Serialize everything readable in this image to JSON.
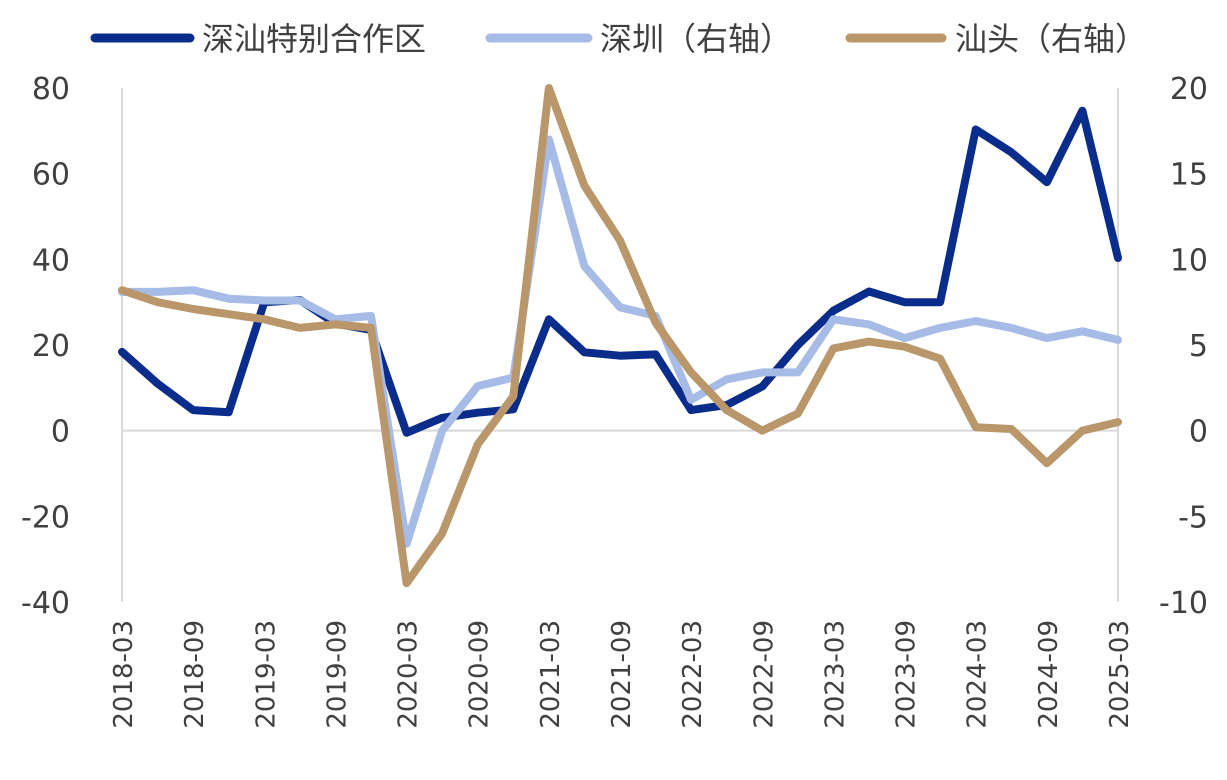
{
  "chart_data": {
    "type": "line",
    "title": "",
    "xlabel": "",
    "ylabel": "",
    "categories": [
      "2018-03",
      "2018-06",
      "2018-09",
      "2018-12",
      "2019-03",
      "2019-06",
      "2019-09",
      "2019-12",
      "2020-03",
      "2020-06",
      "2020-09",
      "2020-12",
      "2021-03",
      "2021-06",
      "2021-09",
      "2021-12",
      "2022-03",
      "2022-06",
      "2022-09",
      "2022-12",
      "2023-03",
      "2023-06",
      "2023-09",
      "2023-12",
      "2024-03",
      "2024-06",
      "2024-09",
      "2024-12",
      "2025-03"
    ],
    "x_tick_labels": [
      "2018-03",
      "2018-09",
      "2019-03",
      "2019-09",
      "2020-03",
      "2020-09",
      "2021-03",
      "2021-09",
      "2022-03",
      "2022-09",
      "2023-03",
      "2023-09",
      "2024-03",
      "2024-09",
      "2025-03"
    ],
    "y_left": {
      "range": [
        -40,
        80
      ],
      "ticks": [
        "80",
        "60",
        "40",
        "20",
        "0",
        "-20",
        "-40"
      ]
    },
    "y_right": {
      "range": [
        -10,
        20
      ],
      "ticks": [
        "20",
        "15",
        "10",
        "5",
        "0",
        "-5",
        "-10"
      ]
    },
    "grid": false,
    "legend_position": "top",
    "series": [
      {
        "name": "深汕特别合作区",
        "axis": "left",
        "color": "#0a2d8c",
        "values": [
          18.4,
          11,
          4.8,
          4.3,
          30,
          30.5,
          25,
          23.5,
          -0.5,
          3,
          4.2,
          5,
          26,
          18.3,
          17.5,
          17.8,
          4.8,
          6,
          10.3,
          20,
          28,
          32.5,
          30,
          30,
          70.3,
          65,
          58,
          74.7,
          40.3
        ]
      },
      {
        "name": "深圳（右轴）",
        "axis": "right",
        "color": "#a6bbe6",
        "values": [
          8.1,
          8.1,
          8.2,
          7.7,
          7.6,
          7.6,
          6.5,
          6.7,
          -6.6,
          0,
          2.6,
          3.1,
          17.0,
          9.6,
          7.2,
          6.7,
          1.8,
          3,
          3.4,
          3.4,
          6.5,
          6.2,
          5.4,
          6.0,
          6.4,
          6.0,
          5.4,
          5.8,
          5.3
        ]
      },
      {
        "name": "汕头（右轴）",
        "axis": "right",
        "color": "#b9976a",
        "values": [
          8.2,
          7.5,
          7.1,
          6.8,
          6.5,
          6.0,
          6.2,
          6.0,
          -8.9,
          -6.0,
          -0.8,
          2.0,
          20.0,
          14.3,
          11.1,
          6.3,
          3.4,
          1.2,
          0.0,
          1.0,
          4.8,
          5.2,
          4.9,
          4.2,
          0.2,
          0.1,
          -1.9,
          0.0,
          0.5
        ]
      }
    ]
  }
}
